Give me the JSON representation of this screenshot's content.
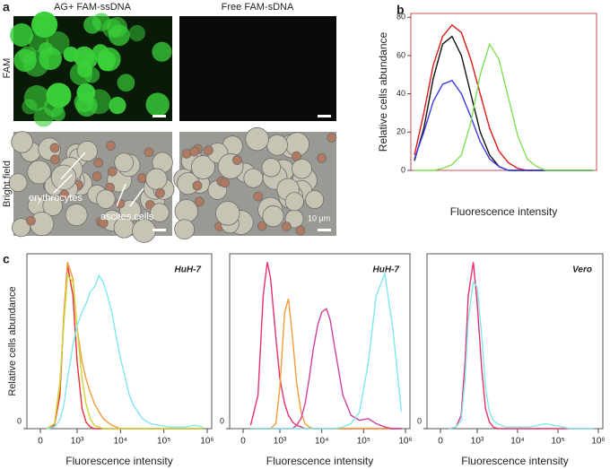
{
  "panel_labels": [
    "a",
    "b",
    "c"
  ],
  "panel_a": {
    "columns": [
      "AG+ FAM-ssDNA",
      "Free FAM-sDNA"
    ],
    "rows": [
      "FAM",
      "Bright field"
    ],
    "annotations": [
      "erythrocytes",
      "ascites cells"
    ],
    "scale_label": "10 μm"
  },
  "chart_data": [
    {
      "type": "line",
      "ylabel": "Relative cells abundance",
      "xlabel": "Fluorescence intensity",
      "ylim": [
        0,
        82
      ],
      "yticks": [
        0,
        20,
        40,
        60,
        80
      ],
      "series": [
        {
          "color": "#e01818",
          "values": [
            8,
            30,
            55,
            70,
            76,
            72,
            58,
            40,
            22,
            10,
            4,
            1,
            0,
            0,
            0,
            0,
            0,
            0,
            0,
            0
          ]
        },
        {
          "color": "#111111",
          "values": [
            5,
            22,
            48,
            66,
            70,
            60,
            40,
            20,
            8,
            2,
            0,
            0,
            0,
            0,
            0,
            0,
            0,
            0,
            0,
            0
          ]
        },
        {
          "color": "#3a3aee",
          "values": [
            6,
            20,
            36,
            45,
            47,
            40,
            28,
            15,
            6,
            2,
            0,
            0,
            0,
            0,
            0,
            0,
            0,
            0,
            0,
            0
          ]
        },
        {
          "color": "#80e050",
          "values": [
            0,
            0,
            0,
            1,
            3,
            8,
            25,
            50,
            66,
            58,
            38,
            18,
            6,
            2,
            0,
            0,
            0,
            0,
            0,
            0
          ]
        }
      ]
    },
    {
      "type": "line",
      "xscale": "log",
      "annotation": "HuH-7",
      "ylabel": "Relative cells abundance",
      "xlabel": "Fluorescence intensity",
      "ylim": [
        0,
        105
      ],
      "yticks": [
        0
      ],
      "xlim": [
        0,
        1000000
      ],
      "xticks": [
        0,
        {
          "value": 1000,
          "label": "10³"
        },
        {
          "value": 10000,
          "label": "10⁴"
        },
        {
          "value": 100000,
          "label": "10⁵"
        },
        {
          "value": 1000000,
          "label": "10⁶"
        }
      ],
      "x": [
        200,
        300,
        400,
        500,
        600,
        800,
        1000,
        1300,
        1600,
        2000,
        2500,
        3200,
        4000,
        5000,
        6300,
        8000,
        10000,
        13000,
        16000,
        20000,
        32000,
        50000,
        80000,
        130000,
        200000,
        320000,
        500000,
        800000
      ],
      "series": [
        {
          "color": "#e8303a",
          "values": [
            0,
            2,
            20,
            70,
            98,
            80,
            40,
            12,
            4,
            1,
            0,
            0,
            0,
            0,
            0,
            0,
            0,
            0,
            0,
            0,
            0,
            0,
            0,
            0,
            0,
            0,
            0,
            0
          ]
        },
        {
          "color": "#f39a3a",
          "values": [
            0,
            3,
            25,
            70,
            100,
            90,
            60,
            40,
            30,
            22,
            15,
            10,
            6,
            4,
            2,
            1,
            0,
            0,
            0,
            0,
            0,
            0,
            0,
            0,
            0,
            0,
            0,
            0
          ]
        },
        {
          "color": "#c9d63a",
          "values": [
            0,
            3,
            28,
            65,
            92,
            88,
            60,
            30,
            15,
            6,
            2,
            1,
            0,
            0,
            0,
            0,
            0,
            0,
            0,
            0,
            0,
            0,
            0,
            0,
            0,
            0,
            0,
            0
          ]
        },
        {
          "color": "#7fe8f0",
          "values": [
            0,
            1,
            5,
            15,
            30,
            50,
            62,
            70,
            75,
            82,
            85,
            92,
            88,
            80,
            70,
            55,
            42,
            30,
            20,
            14,
            6,
            3,
            2,
            1,
            1,
            1,
            2,
            1
          ]
        }
      ]
    },
    {
      "type": "line",
      "xscale": "log",
      "annotation": "HuH-7",
      "xlabel": "Fluorescence intensity",
      "ylim": [
        0,
        105
      ],
      "yticks": [
        0
      ],
      "xlim": [
        0,
        1000000
      ],
      "xticks": [
        0,
        {
          "value": 1000,
          "label": "10³"
        },
        {
          "value": 10000,
          "label": "10⁴"
        },
        {
          "value": 100000,
          "label": "10⁵"
        },
        {
          "value": 1000000,
          "label": "10⁶"
        }
      ],
      "x": [
        200,
        300,
        400,
        500,
        600,
        800,
        1000,
        1300,
        1600,
        2000,
        2500,
        3200,
        4000,
        5000,
        6300,
        8000,
        10000,
        13000,
        16000,
        20000,
        32000,
        50000,
        80000,
        130000,
        200000,
        320000,
        500000,
        800000
      ],
      "series": [
        {
          "color": "#e8306a",
          "values": [
            2,
            20,
            80,
            100,
            90,
            55,
            30,
            15,
            8,
            4,
            2,
            1,
            0,
            0,
            0,
            0,
            0,
            0,
            0,
            0,
            0,
            0,
            0,
            0,
            0,
            0,
            0,
            0
          ]
        },
        {
          "color": "#f39a3a",
          "values": [
            0,
            0,
            0,
            0,
            0,
            3,
            25,
            70,
            78,
            55,
            28,
            10,
            3,
            1,
            0,
            0,
            0,
            0,
            0,
            0,
            0,
            0,
            0,
            0,
            0,
            0,
            0,
            0
          ]
        },
        {
          "color": "#d0409a",
          "values": [
            0,
            0,
            0,
            0,
            0,
            0,
            0,
            0,
            0,
            0,
            2,
            6,
            15,
            30,
            48,
            62,
            70,
            72,
            65,
            50,
            20,
            8,
            5,
            6,
            3,
            1,
            0,
            0
          ]
        },
        {
          "color": "#7fe8f0",
          "values": [
            0,
            0,
            0,
            0,
            0,
            0,
            0,
            0,
            0,
            0,
            0,
            0,
            0,
            0,
            0,
            0,
            0,
            0,
            0,
            0,
            1,
            3,
            10,
            40,
            80,
            93,
            60,
            10
          ]
        }
      ]
    },
    {
      "type": "line",
      "xscale": "log",
      "annotation": "Vero",
      "xlabel": "Fluorescence intensity",
      "ylim": [
        0,
        105
      ],
      "yticks": [
        0
      ],
      "xlim": [
        0,
        1000000
      ],
      "xticks": [
        0,
        {
          "value": 1000,
          "label": "10³"
        },
        {
          "value": 10000,
          "label": "10⁴"
        },
        {
          "value": 100000,
          "label": "10⁵"
        },
        {
          "value": 1000000,
          "label": "10⁶"
        }
      ],
      "x": [
        200,
        300,
        400,
        500,
        600,
        800,
        1000,
        1300,
        1600,
        2000,
        2500,
        3200,
        4000,
        5000,
        6300,
        8000,
        10000,
        13000,
        16000,
        20000,
        32000,
        50000,
        80000,
        130000,
        200000,
        320000,
        500000,
        800000
      ],
      "series": [
        {
          "color": "#e8306a",
          "values": [
            0,
            1,
            8,
            40,
            80,
            100,
            75,
            35,
            12,
            4,
            1,
            0,
            0,
            0,
            0,
            0,
            0,
            0,
            0,
            0,
            0,
            0,
            0,
            0,
            0,
            0,
            0,
            0
          ]
        },
        {
          "color": "#7fe8f0",
          "values": [
            0,
            1,
            5,
            30,
            65,
            88,
            85,
            55,
            25,
            10,
            5,
            3,
            2,
            1,
            1,
            1,
            1,
            1,
            1,
            1,
            2,
            3,
            2,
            1,
            0,
            0,
            0,
            0
          ]
        }
      ]
    }
  ]
}
